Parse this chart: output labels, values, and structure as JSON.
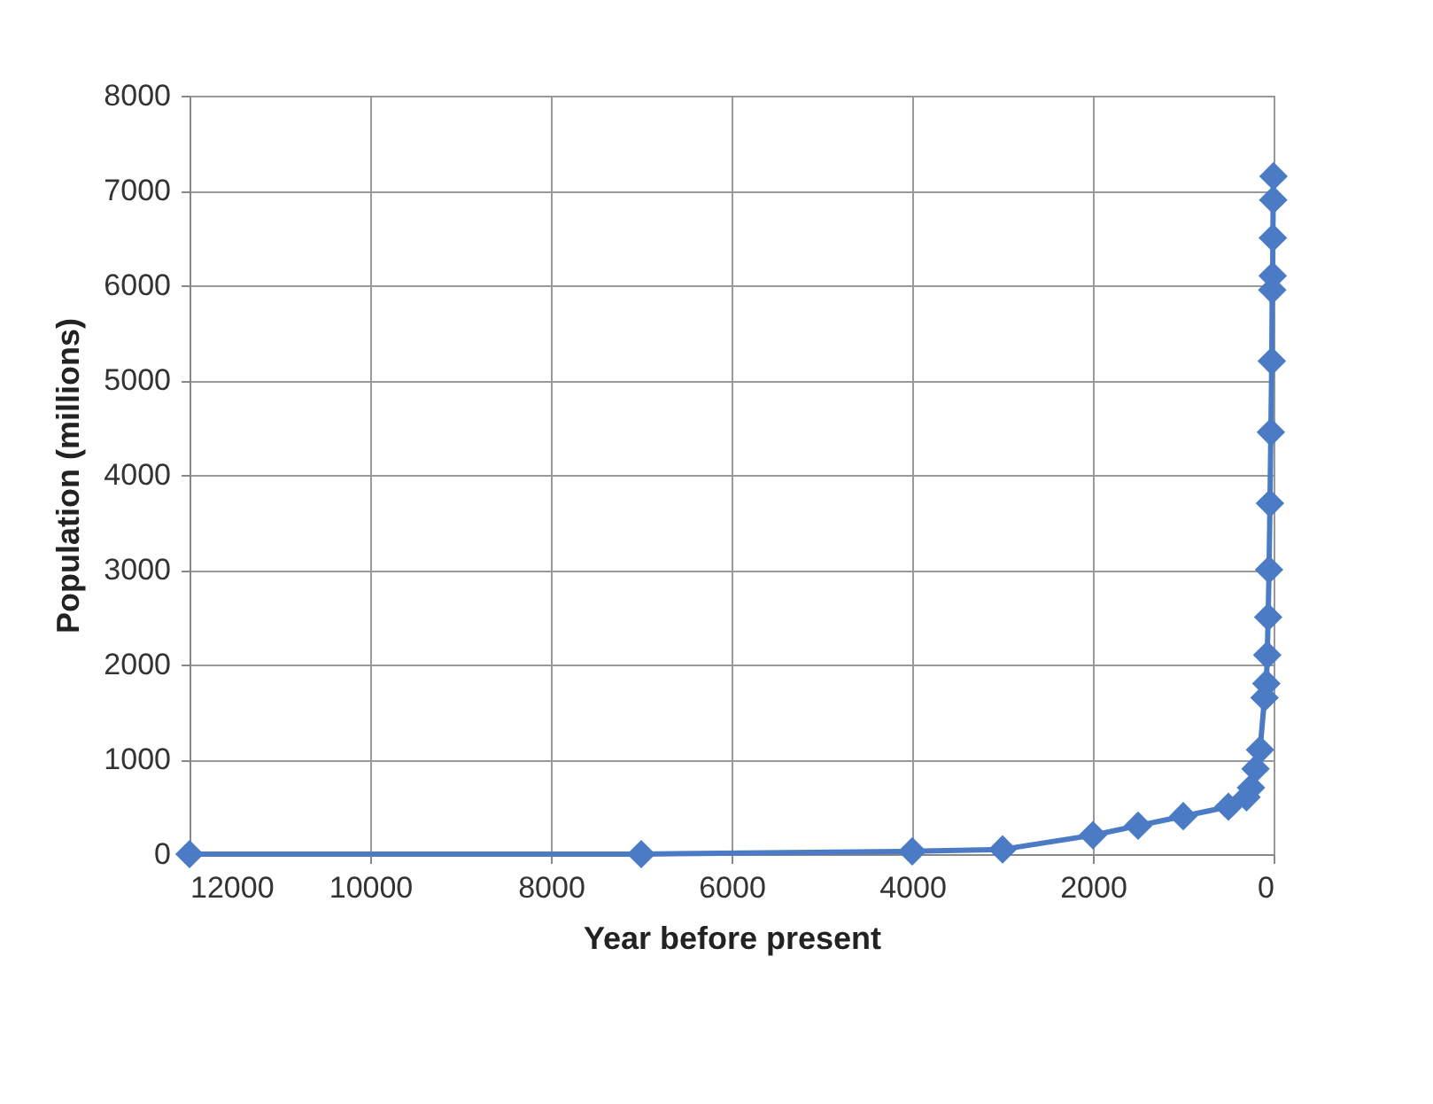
{
  "chart_data": {
    "type": "line",
    "xlabel": "Year before present",
    "ylabel": "Population (millions)",
    "x": [
      12000,
      7000,
      4000,
      3000,
      2000,
      1500,
      1000,
      500,
      300,
      250,
      200,
      150,
      100,
      80,
      70,
      60,
      50,
      40,
      30,
      20,
      15,
      10,
      8,
      4,
      1
    ],
    "series": [
      {
        "color": "#4a7bc4",
        "values": [
          0,
          0,
          30,
          50,
          200,
          300,
          400,
          500,
          600,
          700,
          900,
          1100,
          1650,
          1800,
          2100,
          2500,
          3000,
          3700,
          4450,
          5200,
          5950,
          6100,
          6500,
          6900,
          7150
        ]
      }
    ],
    "xlim": [
      12000,
      0
    ],
    "xticks": [
      12000,
      10000,
      8000,
      6000,
      4000,
      2000,
      0
    ],
    "ylim": [
      0,
      8000
    ],
    "yticks": [
      0,
      1000,
      2000,
      3000,
      4000,
      5000,
      6000,
      7000,
      8000
    ],
    "grid": true,
    "marker": "diamond",
    "line_style": "solid"
  }
}
